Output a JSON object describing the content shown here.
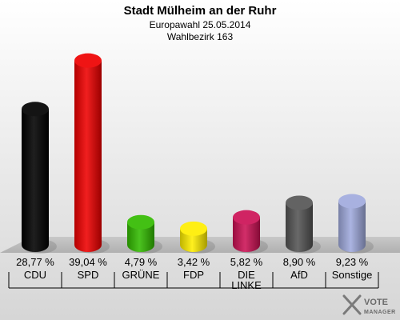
{
  "chart_data": {
    "type": "bar",
    "title": "Stadt Mülheim an der Ruhr",
    "subtitles": [
      "Europawahl 25.05.2014",
      "Wahlbezirk 163"
    ],
    "categories": [
      "CDU",
      "SPD",
      "GRÜNE",
      "FDP",
      "DIE LINKE",
      "AfD",
      "Sonstige"
    ],
    "values": [
      28.77,
      39.04,
      4.79,
      3.42,
      5.82,
      8.9,
      9.23
    ],
    "value_labels": [
      "28,77 %",
      "39,04 %",
      "4,79 %",
      "3,42 %",
      "5,82 %",
      "8,90 %",
      "9,23 %"
    ],
    "colors": [
      "#000000",
      "#ee0000",
      "#33bb00",
      "#ffee00",
      "#cc1155",
      "#555555",
      "#a0aadd"
    ],
    "ylim": [
      0,
      40
    ],
    "grid": false,
    "legend": "none"
  },
  "logo": {
    "line1": "VOTE",
    "line2": "MANAGER"
  }
}
